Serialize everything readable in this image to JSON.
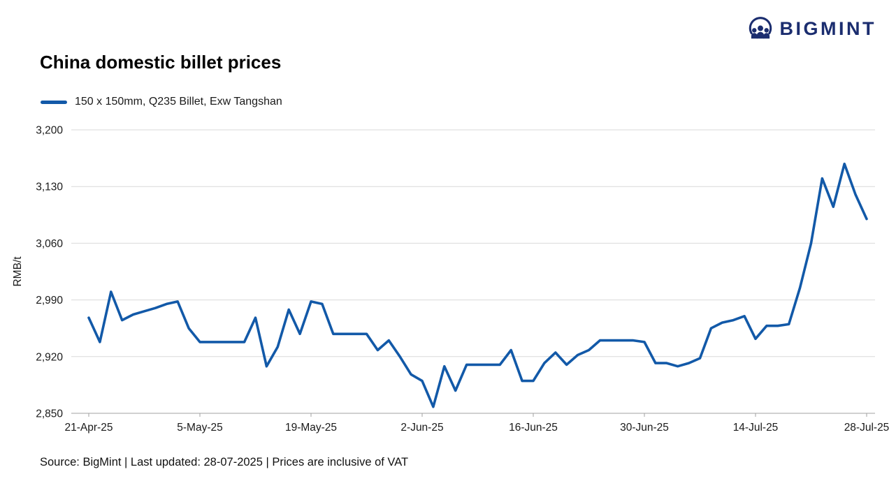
{
  "header": {
    "logo_text": "BIGMINT"
  },
  "title": "China domestic billet prices",
  "legend": {
    "label": "150 x 150mm, Q235 Billet, Exw Tangshan"
  },
  "footer": {
    "text": "Source: BigMint | Last updated: 28-07-2025 | Prices are inclusive of VAT"
  },
  "colors": {
    "line": "#1259a8",
    "logo_navy": "#1b2d6f",
    "grid": "#d9d9d9",
    "axis": "#a0a0a0",
    "tick_text": "#1a1a1a"
  },
  "chart_data": {
    "type": "line",
    "title": "China domestic billet prices",
    "xlabel": "",
    "ylabel": "RMB/t",
    "ylim": [
      2850,
      3200
    ],
    "yticks": [
      2850,
      2920,
      2990,
      3060,
      3130,
      3200
    ],
    "grid": true,
    "legend_position": "top-left",
    "xtick_labels": [
      "21-Apr-25",
      "5-May-25",
      "19-May-25",
      "2-Jun-25",
      "16-Jun-25",
      "30-Jun-25",
      "14-Jul-25",
      "28-Jul-25"
    ],
    "xtick_indices": [
      0,
      10,
      20,
      30,
      40,
      50,
      60,
      70
    ],
    "series": [
      {
        "name": "150 x 150mm, Q235 Billet, Exw Tangshan",
        "color": "#1259a8",
        "x": [
          "21-Apr-25",
          "22-Apr-25",
          "23-Apr-25",
          "24-Apr-25",
          "25-Apr-25",
          "28-Apr-25",
          "29-Apr-25",
          "30-Apr-25",
          "1-May-25",
          "2-May-25",
          "5-May-25",
          "6-May-25",
          "7-May-25",
          "8-May-25",
          "9-May-25",
          "12-May-25",
          "13-May-25",
          "14-May-25",
          "15-May-25",
          "16-May-25",
          "19-May-25",
          "20-May-25",
          "21-May-25",
          "22-May-25",
          "23-May-25",
          "26-May-25",
          "27-May-25",
          "28-May-25",
          "29-May-25",
          "30-May-25",
          "2-Jun-25",
          "3-Jun-25",
          "4-Jun-25",
          "5-Jun-25",
          "6-Jun-25",
          "9-Jun-25",
          "10-Jun-25",
          "11-Jun-25",
          "12-Jun-25",
          "13-Jun-25",
          "16-Jun-25",
          "17-Jun-25",
          "18-Jun-25",
          "19-Jun-25",
          "20-Jun-25",
          "23-Jun-25",
          "24-Jun-25",
          "25-Jun-25",
          "26-Jun-25",
          "27-Jun-25",
          "30-Jun-25",
          "1-Jul-25",
          "2-Jul-25",
          "3-Jul-25",
          "4-Jul-25",
          "7-Jul-25",
          "8-Jul-25",
          "9-Jul-25",
          "10-Jul-25",
          "11-Jul-25",
          "14-Jul-25",
          "15-Jul-25",
          "16-Jul-25",
          "17-Jul-25",
          "18-Jul-25",
          "21-Jul-25",
          "22-Jul-25",
          "23-Jul-25",
          "24-Jul-25",
          "25-Jul-25",
          "28-Jul-25"
        ],
        "values": [
          2968,
          2938,
          3000,
          2965,
          2972,
          2976,
          2980,
          2985,
          2988,
          2955,
          2938,
          2938,
          2938,
          2938,
          2938,
          2968,
          2908,
          2932,
          2978,
          2948,
          2988,
          2985,
          2948,
          2948,
          2948,
          2948,
          2928,
          2940,
          2920,
          2898,
          2890,
          2858,
          2908,
          2878,
          2910,
          2910,
          2910,
          2910,
          2928,
          2890,
          2890,
          2912,
          2925,
          2910,
          2922,
          2928,
          2940,
          2940,
          2940,
          2940,
          2938,
          2912,
          2912,
          2908,
          2912,
          2918,
          2955,
          2962,
          2965,
          2970,
          2942,
          2958,
          2958,
          2960,
          3005,
          3060,
          3140,
          3105,
          3158,
          3120,
          3090
        ]
      }
    ]
  }
}
